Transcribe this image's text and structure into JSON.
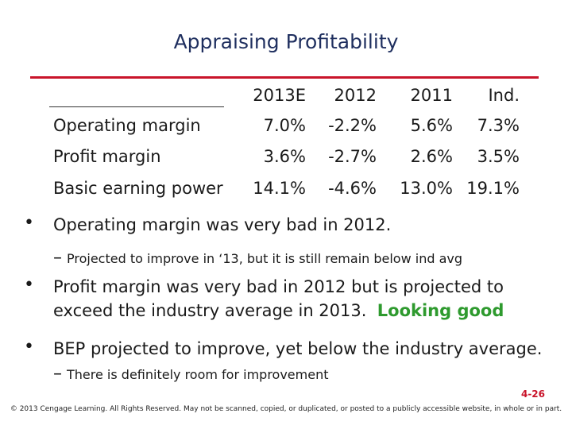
{
  "title": "Appraising Profitability",
  "table": {
    "headers": [
      "2013E",
      "2012",
      "2011",
      "Ind."
    ],
    "rows": [
      {
        "label": "Operating margin",
        "values": [
          "7.0%",
          "-2.2%",
          "5.6%",
          "7.3%"
        ]
      },
      {
        "label": "Profit margin",
        "values": [
          "3.6%",
          "-2.7%",
          "2.6%",
          "3.5%"
        ]
      },
      {
        "label": "Basic earning power",
        "values": [
          "14.1%",
          "-4.6%",
          "13.0%",
          "19.1%"
        ]
      }
    ]
  },
  "bullets": [
    {
      "symbol": "•",
      "text": "Operating margin was very bad in 2012.",
      "sub_dash": "–",
      "sub": "Projected to improve in ‘13, but it is still remain below ind avg"
    },
    {
      "symbol": "•",
      "text_line1": "Profit margin was very bad in 2012 but is projected to",
      "text_line2": "exceed the industry average in 2013.",
      "highlight": "Looking good"
    },
    {
      "symbol": "•",
      "text": "BEP projected to improve, yet below the industry average.",
      "sub_dash": "–",
      "sub": "There is definitely room for improvement"
    }
  ],
  "page_number": "4-26",
  "copyright": "© 2013 Cengage Learning. All Rights Reserved. May not be scanned, copied, or duplicated, or posted to a publicly accessible website, in whole or in part.",
  "colors": {
    "accent": "#c9142a",
    "title": "#1f2f5f",
    "highlight": "#2e9a2e"
  }
}
